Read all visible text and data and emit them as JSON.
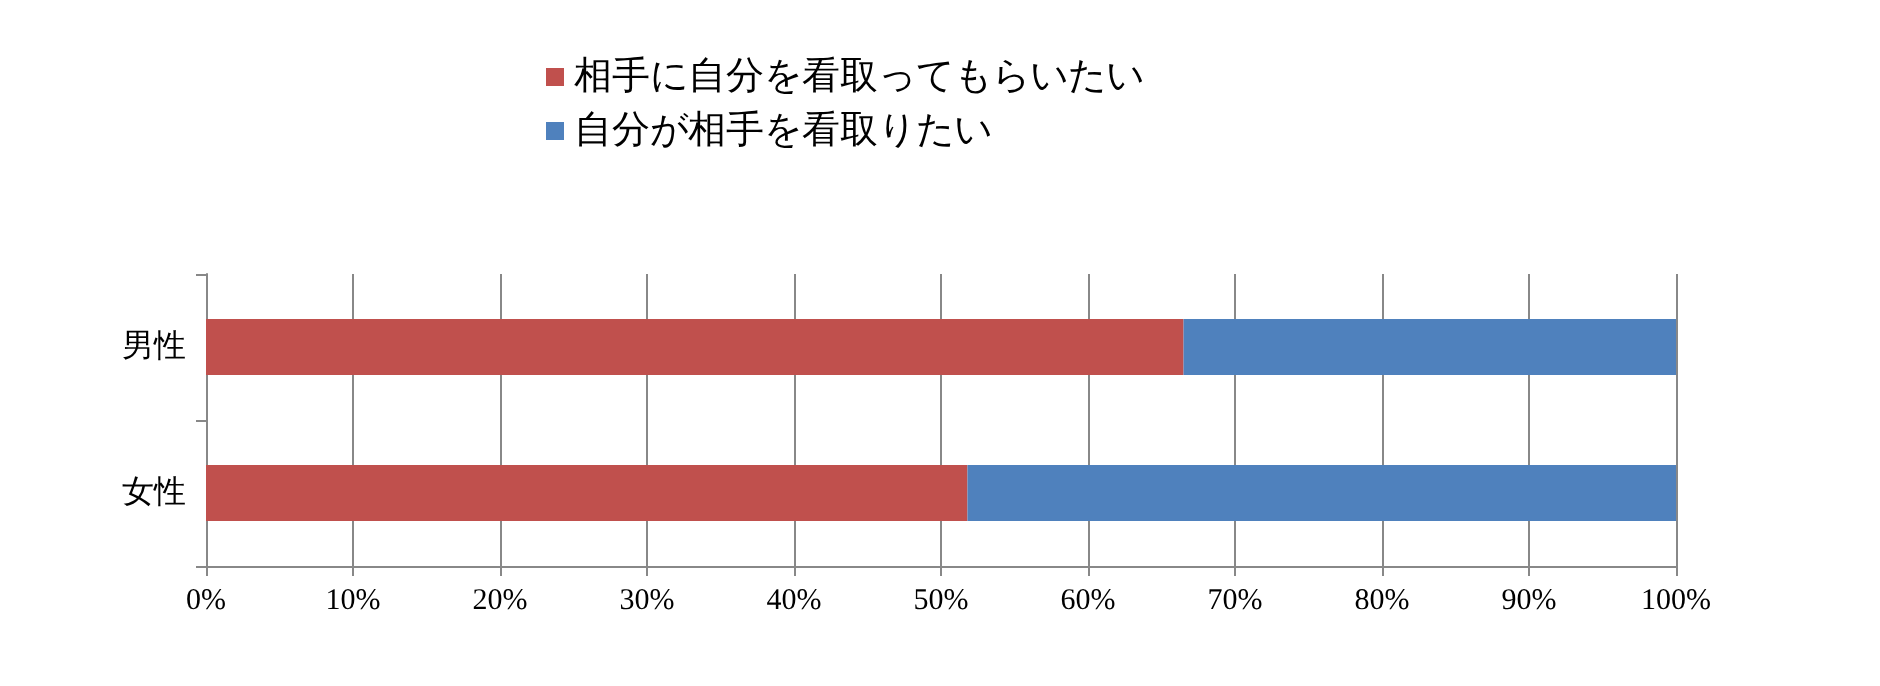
{
  "chart_data": {
    "type": "bar",
    "orientation": "horizontal",
    "stacked": true,
    "categories": [
      "男性",
      "女性"
    ],
    "series": [
      {
        "name": "相手に自分を看取ってもらいたい",
        "color": "#c0504d",
        "values": [
          66.5,
          51.8
        ]
      },
      {
        "name": "自分が相手を看取りたい",
        "color": "#4f81bd",
        "values": [
          33.5,
          48.2
        ]
      }
    ],
    "xlim": [
      0,
      100
    ],
    "xticks": [
      {
        "value": 0,
        "label": "0%"
      },
      {
        "value": 10,
        "label": "10%"
      },
      {
        "value": 20,
        "label": "20%"
      },
      {
        "value": 30,
        "label": "30%"
      },
      {
        "value": 40,
        "label": "40%"
      },
      {
        "value": 50,
        "label": "50%"
      },
      {
        "value": 60,
        "label": "60%"
      },
      {
        "value": 70,
        "label": "70%"
      },
      {
        "value": 80,
        "label": "80%"
      },
      {
        "value": 90,
        "label": "90%"
      },
      {
        "value": 100,
        "label": "100%"
      }
    ],
    "grid": "x",
    "legend": "top"
  }
}
